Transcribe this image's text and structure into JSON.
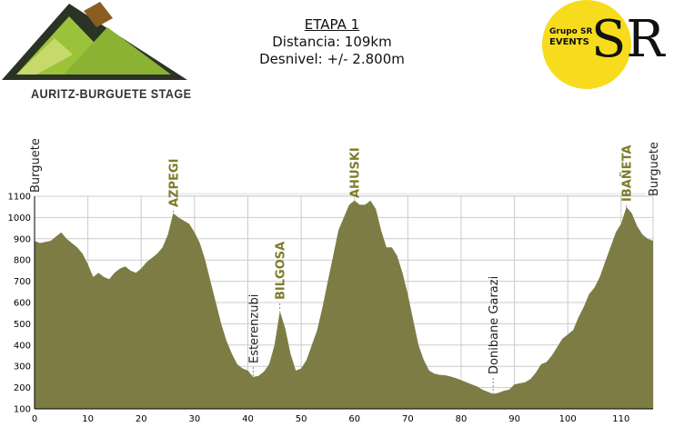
{
  "logo_left": {
    "text": "AURITZ-BURGUETE STAGE"
  },
  "header": {
    "title": "ETAPA 1",
    "distance": "Distancia: 109km",
    "elevation": "Desnivel: +/- 2.800m"
  },
  "logo_right": {
    "grupo": "Grupo SR",
    "events": "EVENTS",
    "monogram": "SR"
  },
  "colors": {
    "fill": "#7d7c45",
    "grid": "#cccccc",
    "label_green": "#7d7c2a",
    "label_dark": "#222222",
    "logo_yellow": "#f6dc1c"
  },
  "chart_data": {
    "type": "area",
    "title": "",
    "xlabel": "",
    "ylabel": "",
    "xlim": [
      0,
      116
    ],
    "ylim": [
      100,
      1100
    ],
    "xticks": [
      0,
      10,
      20,
      30,
      40,
      50,
      60,
      70,
      80,
      90,
      100,
      110
    ],
    "yticks": [
      100,
      200,
      300,
      400,
      500,
      600,
      700,
      800,
      900,
      1000,
      1100
    ],
    "grid": true,
    "x": [
      0,
      1,
      3,
      5,
      6,
      7,
      8,
      9,
      10,
      11,
      12,
      13,
      14,
      15,
      16,
      17,
      18,
      19,
      20,
      21,
      22,
      23,
      24,
      25,
      26,
      27,
      28,
      29,
      30,
      31,
      32,
      33,
      34,
      35,
      36,
      37,
      38,
      39,
      40,
      41,
      42,
      43,
      44,
      45,
      46,
      47,
      48,
      49,
      50,
      51,
      52,
      53,
      54,
      55,
      56,
      57,
      58,
      59,
      60,
      61,
      62,
      63,
      64,
      65,
      66,
      67,
      68,
      69,
      70,
      71,
      72,
      73,
      74,
      75,
      76,
      77,
      78,
      79,
      80,
      81,
      82,
      83,
      84,
      85,
      86,
      87,
      88,
      89,
      90,
      91,
      92,
      93,
      94,
      95,
      96,
      97,
      98,
      99,
      100,
      101,
      102,
      103,
      104,
      105,
      106,
      107,
      108,
      109,
      110,
      111,
      112,
      113,
      114,
      115,
      116
    ],
    "y": [
      890,
      880,
      890,
      930,
      900,
      880,
      860,
      830,
      780,
      720,
      740,
      720,
      710,
      740,
      760,
      770,
      750,
      740,
      760,
      790,
      810,
      830,
      860,
      920,
      1020,
      1000,
      985,
      970,
      930,
      880,
      800,
      700,
      600,
      500,
      420,
      360,
      310,
      290,
      280,
      250,
      255,
      275,
      310,
      400,
      560,
      480,
      360,
      280,
      290,
      330,
      400,
      470,
      580,
      700,
      820,
      940,
      1000,
      1060,
      1080,
      1060,
      1060,
      1080,
      1040,
      940,
      860,
      860,
      820,
      740,
      640,
      520,
      400,
      330,
      280,
      265,
      260,
      258,
      252,
      245,
      235,
      225,
      215,
      205,
      190,
      180,
      170,
      175,
      185,
      190,
      215,
      220,
      225,
      240,
      270,
      310,
      320,
      350,
      390,
      430,
      450,
      470,
      530,
      580,
      640,
      670,
      720,
      790,
      860,
      930,
      970,
      1050,
      1020,
      960,
      920,
      900,
      890
    ],
    "annotations": [
      {
        "text": "Burguete",
        "x": 0,
        "color": "label_dark"
      },
      {
        "text": "AZPEGI",
        "x": 26,
        "color": "label_green"
      },
      {
        "text": "Esterenzubi",
        "x": 41,
        "color": "label_dark"
      },
      {
        "text": "BILGOSA",
        "x": 46,
        "color": "label_green"
      },
      {
        "text": "AHUSKI",
        "x": 60,
        "color": "label_green"
      },
      {
        "text": "Donibane Garazi",
        "x": 86,
        "color": "label_dark"
      },
      {
        "text": "IBAÑETA",
        "x": 111,
        "color": "label_green"
      },
      {
        "text": "Burguete",
        "x": 116,
        "color": "label_dark"
      }
    ]
  }
}
